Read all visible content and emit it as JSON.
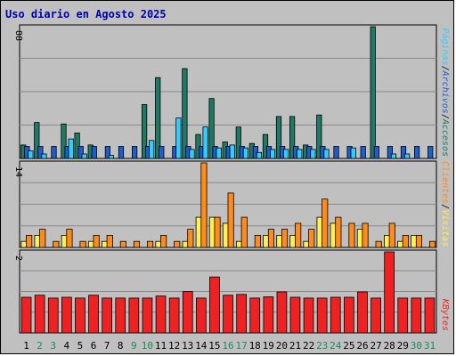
{
  "chart_data": {
    "type": "bar",
    "title": "Uso diario en Agosto 2025",
    "days": [
      "1",
      "2",
      "3",
      "4",
      "5",
      "6",
      "7",
      "8",
      "9",
      "10",
      "11",
      "12",
      "13",
      "14",
      "15",
      "16",
      "17",
      "18",
      "19",
      "20",
      "21",
      "22",
      "23",
      "24",
      "25",
      "26",
      "27",
      "28",
      "29",
      "30",
      "31"
    ],
    "weekend_days": [
      "2",
      "3",
      "9",
      "10",
      "16",
      "17",
      "23",
      "24",
      "30",
      "31"
    ],
    "panels": [
      {
        "id": "visits",
        "ymax_label": "88",
        "ymax": 88,
        "series": [
          {
            "name": "Accesos",
            "color": "#1e7a64",
            "values": [
              9,
              24,
              0,
              23,
              17,
              9,
              0,
              0,
              0,
              36,
              54,
              0,
              60,
              16,
              40,
              11,
              21,
              10,
              16,
              28,
              28,
              9,
              29,
              0,
              0,
              0,
              88,
              0,
              0,
              0,
              0
            ]
          },
          {
            "name": "Archivos",
            "color": "#1f5ccc",
            "values": [
              8,
              8,
              8,
              8,
              8,
              8,
              8,
              8,
              8,
              8,
              8,
              8,
              8,
              8,
              8,
              8,
              8,
              8,
              8,
              8,
              8,
              8,
              8,
              8,
              8,
              8,
              8,
              8,
              8,
              8,
              8
            ]
          },
          {
            "name": "Páginas",
            "color": "#33ccff",
            "values": [
              5,
              3,
              0,
              13,
              3,
              0,
              2,
              0,
              0,
              12,
              0,
              27,
              6,
              21,
              7,
              9,
              7,
              4,
              6,
              6,
              6,
              6,
              6,
              0,
              7,
              0,
              0,
              3,
              3,
              0,
              0
            ]
          }
        ]
      },
      {
        "id": "clients",
        "ymax_label": "14",
        "ymax": 14,
        "series": [
          {
            "name": "Visitas",
            "color": "#ffee55",
            "values": [
              1,
              2,
              0,
              2,
              0,
              1,
              1,
              0,
              0,
              0,
              1,
              0,
              1,
              5,
              5,
              4,
              1,
              0,
              2,
              2,
              2,
              1,
              5,
              4,
              0,
              3,
              0,
              2,
              1,
              2,
              0
            ]
          },
          {
            "name": "Clientes",
            "color": "#ff8c1a",
            "values": [
              2,
              3,
              1,
              3,
              1,
              2,
              2,
              1,
              1,
              1,
              2,
              1,
              3,
              14,
              5,
              9,
              5,
              2,
              3,
              3,
              4,
              3,
              8,
              5,
              4,
              4,
              1,
              4,
              2,
              2,
              1
            ]
          }
        ]
      },
      {
        "id": "kbytes",
        "ymax_label": "2",
        "ymax": 2,
        "series": [
          {
            "name": "KBytes",
            "color": "#ee2222",
            "values": [
              0.88,
              0.93,
              0.86,
              0.88,
              0.86,
              0.93,
              0.86,
              0.86,
              0.86,
              0.86,
              0.91,
              0.86,
              1.02,
              0.86,
              1.38,
              0.93,
              0.95,
              0.86,
              0.89,
              1.01,
              0.88,
              0.86,
              0.86,
              0.88,
              0.88,
              1.01,
              0.86,
              2.0,
              0.86,
              0.86,
              0.86
            ]
          }
        ]
      }
    ]
  }
}
